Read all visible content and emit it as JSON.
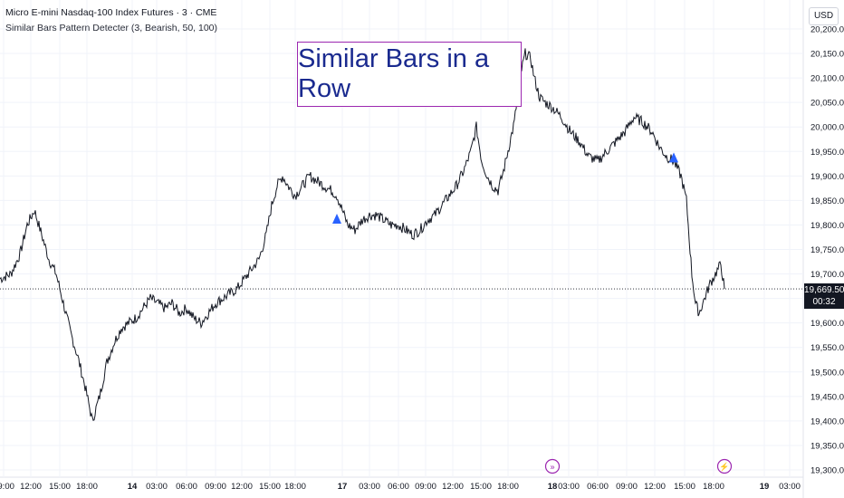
{
  "header": {
    "symbol_line": "Micro E-mini Nasdaq-100 Index Futures · 3 · CME",
    "indicator_line": "Similar Bars Pattern Detecter (3, Bearish, 50, 100)"
  },
  "currency": "USD",
  "annotation_text": "Similar Bars in a Row",
  "price_badge": {
    "price": "19,669.50",
    "countdown": "00:32"
  },
  "y_axis": {
    "labels": [
      "20,200.00",
      "20,150.00",
      "20,100.00",
      "20,050.00",
      "20,000.00",
      "19,950.00",
      "19,900.00",
      "19,850.00",
      "19,800.00",
      "19,750.00",
      "19,700.00",
      "19,650.00",
      "19,600.00",
      "19,550.00",
      "19,500.00",
      "19,450.00",
      "19,400.00",
      "19,350.00",
      "19,300.00"
    ]
  },
  "x_axis": {
    "labels": [
      "09:00",
      "12:00",
      "15:00",
      "18:00",
      "14",
      "03:00",
      "06:00",
      "09:00",
      "12:00",
      "15:00",
      "18:00",
      "17",
      "03:00",
      "06:00",
      "09:00",
      "12:00",
      "15:00",
      "18:00",
      "18",
      "03:00",
      "06:00",
      "09:00",
      "12:00",
      "15:00",
      "18:00",
      "19",
      "03:00"
    ]
  },
  "chart_data": {
    "type": "line",
    "title": "Micro E-mini Nasdaq-100 Index Futures · 3 · CME",
    "ylim": [
      19300,
      20200
    ],
    "last_price": 19669.5,
    "series": [
      {
        "name": "Micro E-mini Nasdaq-100 Index Futures",
        "x": [
          0,
          12,
          22,
          30,
          38,
          46,
          54,
          62,
          70,
          78,
          86,
          94,
          102,
          110,
          118,
          126,
          134,
          142,
          150,
          158,
          166,
          174,
          182,
          190,
          198,
          206,
          214,
          222,
          230,
          238,
          246,
          254,
          262,
          270,
          278,
          286,
          294,
          300,
          306,
          312,
          318,
          326,
          334,
          342,
          350,
          358,
          366,
          372,
          378,
          384,
          392,
          400,
          408,
          416,
          424,
          432,
          440,
          448,
          456,
          464,
          472,
          480,
          488,
          496,
          504,
          512,
          520,
          526,
          532,
          538,
          544,
          550,
          556,
          562,
          568,
          574,
          580,
          586,
          590,
          596,
          602,
          610,
          620,
          630,
          640,
          650,
          660,
          670,
          680,
          690,
          700,
          710,
          720,
          728,
          736,
          744,
          752,
          758,
          764,
          768,
          772,
          778,
          784,
          790,
          796,
          800
        ],
        "values": [
          19690,
          19700,
          19740,
          19800,
          19830,
          19780,
          19730,
          19700,
          19640,
          19580,
          19530,
          19470,
          19400,
          19450,
          19520,
          19560,
          19590,
          19600,
          19610,
          19630,
          19650,
          19640,
          19630,
          19640,
          19620,
          19630,
          19610,
          19600,
          19620,
          19640,
          19650,
          19660,
          19670,
          19690,
          19710,
          19730,
          19780,
          19840,
          19880,
          19900,
          19880,
          19860,
          19880,
          19900,
          19890,
          19880,
          19870,
          19860,
          19830,
          19800,
          19790,
          19810,
          19820,
          19820,
          19810,
          19800,
          19800,
          19790,
          19780,
          19790,
          19810,
          19820,
          19840,
          19860,
          19880,
          19910,
          19950,
          20000,
          19930,
          19900,
          19880,
          19870,
          19910,
          19960,
          20010,
          20100,
          20150,
          20140,
          20100,
          20060,
          20050,
          20040,
          20020,
          19990,
          19970,
          19940,
          19930,
          19950,
          19970,
          19990,
          20020,
          20010,
          19990,
          19960,
          19940,
          19930,
          19900,
          19850,
          19700,
          19640,
          19620,
          19650,
          19680,
          19700,
          19720,
          19669.5
        ]
      }
    ],
    "markers": [
      {
        "type": "triangle-up",
        "x": 372,
        "y": 19810,
        "color": "#2962ff"
      },
      {
        "type": "triangle-up",
        "x": 744,
        "y": 19935,
        "color": "#2962ff"
      }
    ]
  },
  "event_icons": [
    {
      "name": "dividend-icon",
      "glyph": "»",
      "x_label": "18"
    },
    {
      "name": "lightning-icon",
      "glyph": "⚡",
      "x_label": "18:00"
    }
  ],
  "colors": {
    "candle": "#131722",
    "marker": "#2962ff",
    "annotation_border": "#9c27b0",
    "annotation_text": "#1a2a8f",
    "event": "#9c27b0"
  }
}
